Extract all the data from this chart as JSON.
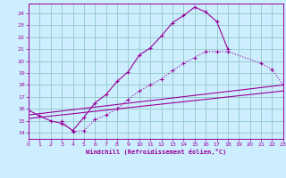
{
  "xlabel": "Windchill (Refroidissement éolien,°C)",
  "bg_color": "#cceeff",
  "grid_color": "#99cccc",
  "line_color": "#990099",
  "xmin": 0,
  "xmax": 23,
  "ymin": 13.5,
  "ymax": 24.8,
  "yticks": [
    14,
    15,
    16,
    17,
    18,
    19,
    20,
    21,
    22,
    23,
    24
  ],
  "xticks": [
    0,
    1,
    2,
    3,
    4,
    5,
    6,
    7,
    8,
    9,
    10,
    11,
    12,
    13,
    14,
    15,
    16,
    17,
    18,
    19,
    20,
    21,
    22,
    23
  ],
  "curve1_x": [
    0,
    1,
    2,
    3,
    4,
    5,
    6,
    7,
    8,
    9,
    10,
    11,
    12,
    13,
    14,
    15,
    16,
    17,
    18
  ],
  "curve1_y": [
    15.9,
    15.4,
    15.0,
    14.8,
    14.2,
    15.3,
    16.5,
    17.2,
    18.3,
    19.1,
    20.5,
    21.1,
    22.1,
    23.2,
    23.8,
    24.5,
    24.1,
    23.3,
    21.0
  ],
  "curve2_x": [
    3,
    4,
    5,
    6,
    7,
    8,
    9,
    10,
    11,
    12,
    13,
    14,
    15,
    16,
    17,
    18,
    21,
    22,
    23
  ],
  "curve2_y": [
    15.0,
    14.1,
    14.2,
    15.1,
    15.5,
    16.0,
    16.8,
    17.5,
    18.0,
    18.5,
    19.2,
    19.8,
    20.3,
    20.8,
    20.8,
    20.8,
    19.8,
    19.3,
    18.0
  ],
  "line3_x": [
    0,
    23
  ],
  "line3_y": [
    15.5,
    18.0
  ],
  "line4_x": [
    0,
    23
  ],
  "line4_y": [
    15.2,
    17.5
  ]
}
